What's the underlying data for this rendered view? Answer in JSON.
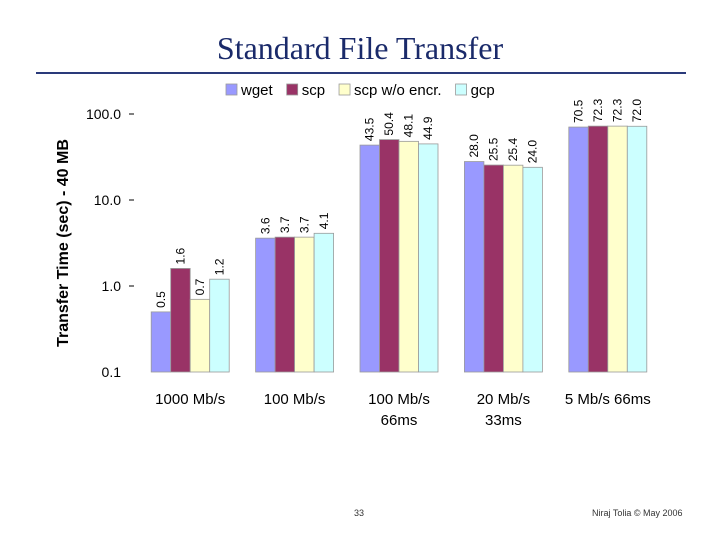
{
  "slide": {
    "title": "Standard File Transfer",
    "page_number": "33",
    "credit": "Niraj Tolia © May 2006"
  },
  "chart_data": {
    "type": "bar",
    "ylabel": "Transfer Time (sec) - 40 MB",
    "yscale": "log",
    "ylim": [
      0.1,
      100
    ],
    "yticks": [
      {
        "value": 100,
        "label": "100.0"
      },
      {
        "value": 10,
        "label": "10.0"
      },
      {
        "value": 1,
        "label": "1.0"
      },
      {
        "value": 0.1,
        "label": "0.1"
      }
    ],
    "legend_position": "top",
    "categories": [
      [
        "1000 Mb/s"
      ],
      [
        "100 Mb/s"
      ],
      [
        "100 Mb/s",
        "66ms"
      ],
      [
        "20 Mb/s",
        "33ms"
      ],
      [
        "5 Mb/s 66ms"
      ]
    ],
    "series": [
      {
        "name": "wget",
        "color": "#9999ff",
        "values": [
          0.5,
          3.6,
          43.5,
          28.0,
          70.5
        ],
        "labels": [
          "0.5",
          "3.6",
          "43.5",
          "28.0",
          "70.5"
        ]
      },
      {
        "name": "scp",
        "color": "#993366",
        "values": [
          1.6,
          3.7,
          50.4,
          25.5,
          72.3
        ],
        "labels": [
          "1.6",
          "3.7",
          "50.4",
          "25.5",
          "72.3"
        ]
      },
      {
        "name": "scp w/o encr.",
        "color": "#ffffcc",
        "values": [
          0.7,
          3.7,
          48.1,
          25.4,
          72.3
        ],
        "labels": [
          "0.7",
          "3.7",
          "48.1",
          "25.4",
          "72.3"
        ]
      },
      {
        "name": "gcp",
        "color": "#ccffff",
        "values": [
          1.2,
          4.1,
          44.9,
          24.0,
          72.0
        ],
        "labels": [
          "1.2",
          "4.1",
          "44.9",
          "24.0",
          "72.0"
        ]
      }
    ]
  }
}
